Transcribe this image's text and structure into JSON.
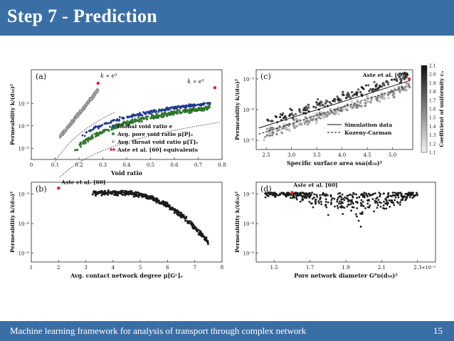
{
  "slide": {
    "title": "Step 7 - Prediction",
    "footer": "Machine learning framework for analysis of transport through complex network",
    "page_number": "15"
  },
  "colors": {
    "bar": "#3a6fa6",
    "green": "#2e8b2e",
    "blue": "#1f3fb0",
    "gray": "#9a9a9a",
    "red": "#e8202a"
  },
  "chart_data": [
    {
      "panel_label": "(a)",
      "type": "scatter",
      "xlabel": "Void ratio",
      "ylabel": "Permeability k/(d₅₀)²",
      "xlim": [
        0,
        0.8
      ],
      "ylim_log10": [
        -5.5,
        -1.5
      ],
      "x_ticks": [
        "0",
        "0.1",
        "0.2",
        "0.3",
        "0.4",
        "0.5",
        "0.6",
        "0.7",
        "0.8"
      ],
      "y_ticks": [
        "10⁻³",
        "10⁻⁴",
        "10⁻⁵"
      ],
      "legend": [
        "Global void ratio e",
        "Avg. pore void ratio μ[P]ₑ",
        "Avg. throat void ratio μ[T]ₑ",
        "Aste et al. [60] equivalents"
      ],
      "annotations": [
        "k ∝ e³",
        "k ∝ e³"
      ],
      "series": [
        {
          "name": "Global void ratio e",
          "x_range": [
            0.2,
            0.78
          ],
          "log10y_range": [
            -4.6,
            -2.8
          ]
        },
        {
          "name": "Avg. pore void ratio μ[P]ₑ",
          "x_range": [
            0.18,
            0.75
          ],
          "log10y_range": [
            -5.2,
            -2.8
          ]
        },
        {
          "name": "Avg. throat void ratio μ[T]ₑ",
          "x_range": [
            0.12,
            0.28
          ],
          "log10y_range": [
            -4.5,
            -2.4
          ]
        },
        {
          "name": "Aste et al. [60] equivalents",
          "points": [
            [
              0.28,
              -2.1
            ],
            [
              0.77,
              -2.3
            ]
          ]
        }
      ]
    },
    {
      "panel_label": "(c)",
      "type": "scatter",
      "xlabel": "Specific surface area ssa(d₅₀)²",
      "ylabel": "Permeability k/(d₅₀)²",
      "xlim": [
        2.3,
        5.4
      ],
      "ylim_log10": [
        -5.3,
        -2.7
      ],
      "x_ticks": [
        "2.5",
        "3.0",
        "3.5",
        "4.0",
        "4.5",
        "5.0"
      ],
      "y_ticks": [
        "10⁻³",
        "10⁻⁴",
        "10⁻⁵"
      ],
      "colorbar_label": "Coefficient of uniformity cᵤ",
      "colorbar_ticks": [
        "2.1",
        "2.0",
        "1.9",
        "1.8",
        "1.7",
        "1.6",
        "1.5",
        "1.4",
        "1.3",
        "1.2",
        "1.1"
      ],
      "legend": [
        "Simulation data",
        "Kozeny-Carman"
      ],
      "annotations": [
        "Aste et al. [60]"
      ],
      "series": [
        {
          "name": "Simulation data",
          "x_range": [
            2.4,
            5.4
          ],
          "log10y_range": [
            -4.7,
            -3.0
          ]
        },
        {
          "name": "Kozeny-Carman",
          "x_range": [
            2.4,
            5.4
          ],
          "log10y_range": [
            -4.8,
            -3.1
          ]
        }
      ]
    },
    {
      "panel_label": "(b)",
      "type": "scatter",
      "xlabel": "Avg. contact network degree μ[Gᶜ]ₑ",
      "ylabel": "Permeability k/(d₅₀)²",
      "xlim": [
        1,
        8
      ],
      "ylim_log10": [
        -5.3,
        -2.6
      ],
      "x_ticks": [
        "1",
        "2",
        "3",
        "4",
        "5",
        "6",
        "7",
        "8"
      ],
      "y_ticks": [
        "10⁻³",
        "10⁻⁴",
        "10⁻⁵"
      ],
      "annotations": [
        "Aste et al. [60]"
      ],
      "series": [
        {
          "name": "Simulation data",
          "x_range": [
            3.2,
            7.5
          ],
          "log10y_range": [
            -4.6,
            -2.9
          ]
        },
        {
          "name": "Aste et al. [60]",
          "points": [
            [
              2.0,
              -2.8
            ]
          ]
        }
      ]
    },
    {
      "panel_label": "(d)",
      "type": "scatter",
      "xlabel": "Pore network diameter Gᴾᴅ(d₅₀)²",
      "ylabel": "Permeability k/(d₅₀)²",
      "xlim": [
        1.4,
        2.4
      ],
      "ylim_log10": [
        -5.3,
        -2.6
      ],
      "x_ticks": [
        "1.5",
        "1.7",
        "1.9",
        "2.1",
        "2.3"
      ],
      "x_multiplier": "×10⁻³",
      "y_ticks": [
        "10⁻³",
        "10⁻⁴",
        "10⁻⁵"
      ],
      "annotations": [
        "Aste et al. [60]"
      ],
      "series": [
        {
          "name": "Simulation data",
          "x_range": [
            1.45,
            2.3
          ],
          "log10y_range": [
            -5.0,
            -2.9
          ]
        },
        {
          "name": "Aste et al. [60]",
          "points": [
            [
              1.6,
              -2.95
            ]
          ]
        }
      ]
    }
  ]
}
